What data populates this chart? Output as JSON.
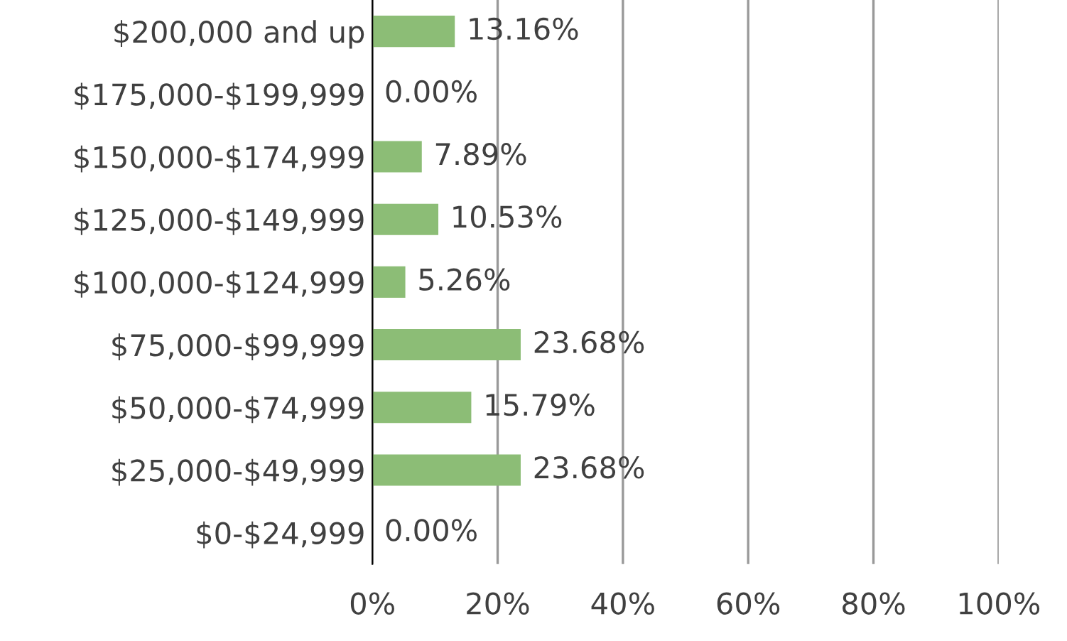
{
  "chart_data": {
    "type": "bar",
    "orientation": "horizontal",
    "categories": [
      "$200,000 and up",
      "$175,000-$199,999",
      "$150,000-$174,999",
      "$125,000-$149,999",
      "$100,000-$124,999",
      "$75,000-$99,999",
      "$50,000-$74,999",
      "$25,000-$49,999",
      "$0-$24,999"
    ],
    "values": [
      13.16,
      0.0,
      7.89,
      10.53,
      5.26,
      23.68,
      15.79,
      23.68,
      0.0
    ],
    "value_labels": [
      "13.16%",
      "0.00%",
      "7.89%",
      "10.53%",
      "5.26%",
      "23.68%",
      "15.79%",
      "23.68%",
      "0.00%"
    ],
    "color": "#8cbd76",
    "xlim": [
      0,
      100
    ],
    "xticks": [
      {
        "value": 0,
        "label": "0%"
      },
      {
        "value": 20,
        "label": "20%"
      },
      {
        "value": 40,
        "label": "40%"
      },
      {
        "value": 60,
        "label": "60%"
      },
      {
        "value": 80,
        "label": "80%"
      },
      {
        "value": 100,
        "label": "100%"
      }
    ],
    "grid": "x",
    "legend": false
  }
}
